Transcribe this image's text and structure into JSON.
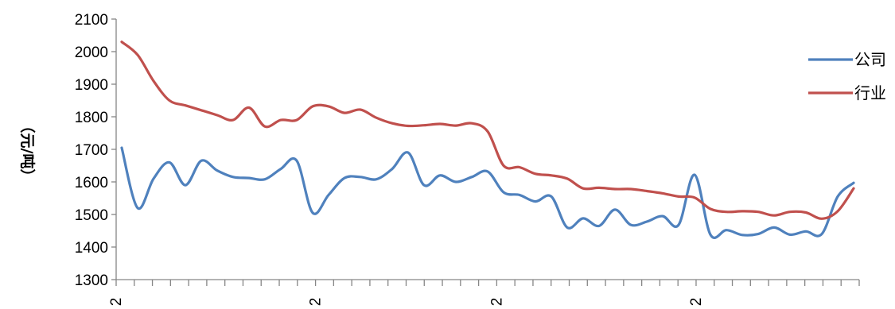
{
  "chart_data": {
    "type": "line",
    "title": "",
    "xlabel": "",
    "ylabel": "（元/吨）",
    "ylim": [
      1300,
      2100
    ],
    "yticks": [
      1300,
      1400,
      1500,
      1600,
      1700,
      1800,
      1900,
      2000,
      2100
    ],
    "x_ticks": {
      "count": 42,
      "labeled": [
        {
          "index": 0,
          "label": "2"
        },
        {
          "index": 11,
          "label": "2"
        },
        {
          "index": 21,
          "label": "2"
        },
        {
          "index": 32,
          "label": "2"
        }
      ]
    },
    "grid": false,
    "legend_position": "right",
    "series": [
      {
        "name": "公司",
        "color": "#4F81BD",
        "values": [
          1705,
          1520,
          1610,
          1660,
          1590,
          1665,
          1635,
          1615,
          1612,
          1608,
          1640,
          1665,
          1505,
          1560,
          1612,
          1615,
          1608,
          1640,
          1690,
          1590,
          1620,
          1600,
          1615,
          1632,
          1568,
          1560,
          1540,
          1555,
          1460,
          1488,
          1465,
          1515,
          1468,
          1478,
          1495,
          1468,
          1622,
          1438,
          1452,
          1437,
          1440,
          1460,
          1438,
          1448,
          1440,
          1555,
          1597
        ]
      },
      {
        "name": "行业",
        "color": "#C0504D",
        "values": [
          2030,
          1990,
          1910,
          1850,
          1835,
          1820,
          1805,
          1790,
          1828,
          1770,
          1790,
          1790,
          1832,
          1832,
          1812,
          1822,
          1797,
          1780,
          1772,
          1774,
          1778,
          1773,
          1780,
          1755,
          1650,
          1645,
          1625,
          1620,
          1610,
          1580,
          1582,
          1578,
          1578,
          1572,
          1565,
          1555,
          1552,
          1517,
          1508,
          1510,
          1508,
          1497,
          1508,
          1506,
          1487,
          1510,
          1580
        ]
      }
    ]
  }
}
